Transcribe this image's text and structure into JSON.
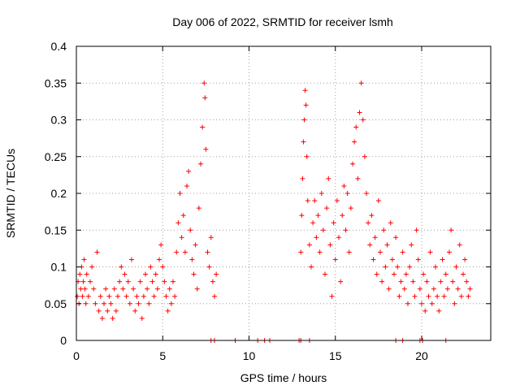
{
  "chart_data": {
    "type": "scatter",
    "title": "Day 006 of 2022, SRMTID for receiver lsmh",
    "xlabel": "GPS time / hours",
    "ylabel": "SRMTID / TECUs",
    "xlim": [
      0,
      24
    ],
    "ylim": [
      0,
      0.4
    ],
    "grid": true,
    "marker": "+",
    "color": "#ff0000",
    "x_ticks": [
      0,
      5,
      10,
      15,
      20
    ],
    "x_tick_labels": [
      "0",
      "5",
      "10",
      "15",
      "20"
    ],
    "y_ticks": [
      0,
      0.05,
      0.1,
      0.15,
      0.2,
      0.25,
      0.3,
      0.35,
      0.4
    ],
    "y_tick_labels": [
      "0",
      "0.05",
      "0.1",
      "0.15",
      "0.2",
      "0.25",
      "0.3",
      "0.35",
      "0.4"
    ],
    "series": [
      {
        "name": "SRMTID",
        "points": [
          [
            0.05,
            0.06
          ],
          [
            0.1,
            0.08
          ],
          [
            0.15,
            0.05
          ],
          [
            0.2,
            0.09
          ],
          [
            0.25,
            0.07
          ],
          [
            0.3,
            0.1
          ],
          [
            0.35,
            0.06
          ],
          [
            0.4,
            0.08
          ],
          [
            0.45,
            0.11
          ],
          [
            0.5,
            0.07
          ],
          [
            0.55,
            0.05
          ],
          [
            0.6,
            0.09
          ],
          [
            0.7,
            0.06
          ],
          [
            0.8,
            0.08
          ],
          [
            0.9,
            0.1
          ],
          [
            1.0,
            0.07
          ],
          [
            1.1,
            0.05
          ],
          [
            1.2,
            0.12
          ],
          [
            1.3,
            0.04
          ],
          [
            1.4,
            0.06
          ],
          [
            1.5,
            0.03
          ],
          [
            1.6,
            0.05
          ],
          [
            1.7,
            0.07
          ],
          [
            1.8,
            0.04
          ],
          [
            1.9,
            0.06
          ],
          [
            2.0,
            0.05
          ],
          [
            2.1,
            0.03
          ],
          [
            2.2,
            0.07
          ],
          [
            2.3,
            0.04
          ],
          [
            2.4,
            0.06
          ],
          [
            2.5,
            0.08
          ],
          [
            2.6,
            0.1
          ],
          [
            2.7,
            0.07
          ],
          [
            2.8,
            0.09
          ],
          [
            2.9,
            0.06
          ],
          [
            3.0,
            0.08
          ],
          [
            3.1,
            0.05
          ],
          [
            3.2,
            0.11
          ],
          [
            3.3,
            0.07
          ],
          [
            3.4,
            0.04
          ],
          [
            3.5,
            0.06
          ],
          [
            3.6,
            0.05
          ],
          [
            3.7,
            0.08
          ],
          [
            3.8,
            0.03
          ],
          [
            3.9,
            0.06
          ],
          [
            4.0,
            0.09
          ],
          [
            4.1,
            0.07
          ],
          [
            4.2,
            0.05
          ],
          [
            4.3,
            0.1
          ],
          [
            4.4,
            0.08
          ],
          [
            4.5,
            0.06
          ],
          [
            4.6,
            0.09
          ],
          [
            4.7,
            0.07
          ],
          [
            4.8,
            0.11
          ],
          [
            4.9,
            0.13
          ],
          [
            5.0,
            0.1
          ],
          [
            5.1,
            0.08
          ],
          [
            5.2,
            0.06
          ],
          [
            5.3,
            0.04
          ],
          [
            5.4,
            0.07
          ],
          [
            5.5,
            0.05
          ],
          [
            5.6,
            0.08
          ],
          [
            5.7,
            0.06
          ],
          [
            5.8,
            0.12
          ],
          [
            5.9,
            0.16
          ],
          [
            6.0,
            0.2
          ],
          [
            6.1,
            0.14
          ],
          [
            6.2,
            0.17
          ],
          [
            6.3,
            0.12
          ],
          [
            6.4,
            0.21
          ],
          [
            6.5,
            0.23
          ],
          [
            6.6,
            0.15
          ],
          [
            6.7,
            0.11
          ],
          [
            6.8,
            0.09
          ],
          [
            6.9,
            0.13
          ],
          [
            7.0,
            0.07
          ],
          [
            7.1,
            0.18
          ],
          [
            7.2,
            0.24
          ],
          [
            7.3,
            0.29
          ],
          [
            7.4,
            0.35
          ],
          [
            7.45,
            0.33
          ],
          [
            7.5,
            0.26
          ],
          [
            7.6,
            0.12
          ],
          [
            7.7,
            0.1
          ],
          [
            7.8,
            0.14
          ],
          [
            7.9,
            0.08
          ],
          [
            8.0,
            0.06
          ],
          [
            8.1,
            0.09
          ],
          [
            7.8,
            0.0
          ],
          [
            8.0,
            0.0
          ],
          [
            9.2,
            0.0
          ],
          [
            10.5,
            0.0
          ],
          [
            10.9,
            0.0
          ],
          [
            11.2,
            0.0
          ],
          [
            12.9,
            0.0
          ],
          [
            13.0,
            0.0
          ],
          [
            13.5,
            0.0
          ],
          [
            13.0,
            0.12
          ],
          [
            13.05,
            0.17
          ],
          [
            13.1,
            0.22
          ],
          [
            13.15,
            0.27
          ],
          [
            13.2,
            0.3
          ],
          [
            13.25,
            0.34
          ],
          [
            13.3,
            0.32
          ],
          [
            13.35,
            0.25
          ],
          [
            13.4,
            0.19
          ],
          [
            13.5,
            0.13
          ],
          [
            13.6,
            0.1
          ],
          [
            13.7,
            0.16
          ],
          [
            13.8,
            0.19
          ],
          [
            13.9,
            0.14
          ],
          [
            14.0,
            0.17
          ],
          [
            14.1,
            0.12
          ],
          [
            14.2,
            0.2
          ],
          [
            14.3,
            0.15
          ],
          [
            14.4,
            0.09
          ],
          [
            14.5,
            0.18
          ],
          [
            14.6,
            0.22
          ],
          [
            14.7,
            0.13
          ],
          [
            14.8,
            0.06
          ],
          [
            14.9,
            0.16
          ],
          [
            15.0,
            0.11
          ],
          [
            15.1,
            0.19
          ],
          [
            15.2,
            0.14
          ],
          [
            15.3,
            0.08
          ],
          [
            15.4,
            0.17
          ],
          [
            15.5,
            0.21
          ],
          [
            15.6,
            0.15
          ],
          [
            15.7,
            0.2
          ],
          [
            15.8,
            0.12
          ],
          [
            15.9,
            0.18
          ],
          [
            16.0,
            0.24
          ],
          [
            16.1,
            0.27
          ],
          [
            16.2,
            0.29
          ],
          [
            16.3,
            0.22
          ],
          [
            16.4,
            0.31
          ],
          [
            16.5,
            0.35
          ],
          [
            16.6,
            0.3
          ],
          [
            16.7,
            0.25
          ],
          [
            16.8,
            0.2
          ],
          [
            16.9,
            0.16
          ],
          [
            17.0,
            0.13
          ],
          [
            17.1,
            0.17
          ],
          [
            17.2,
            0.11
          ],
          [
            17.3,
            0.14
          ],
          [
            17.4,
            0.09
          ],
          [
            17.5,
            0.19
          ],
          [
            17.6,
            0.12
          ],
          [
            17.7,
            0.08
          ],
          [
            17.8,
            0.15
          ],
          [
            17.9,
            0.1
          ],
          [
            18.0,
            0.13
          ],
          [
            18.1,
            0.07
          ],
          [
            18.2,
            0.16
          ],
          [
            18.3,
            0.11
          ],
          [
            18.4,
            0.09
          ],
          [
            18.5,
            0.14
          ],
          [
            18.6,
            0.1
          ],
          [
            18.7,
            0.06
          ],
          [
            18.8,
            0.08
          ],
          [
            18.9,
            0.12
          ],
          [
            19.0,
            0.07
          ],
          [
            19.1,
            0.09
          ],
          [
            19.2,
            0.05
          ],
          [
            19.3,
            0.1
          ],
          [
            19.4,
            0.13
          ],
          [
            19.5,
            0.08
          ],
          [
            19.6,
            0.06
          ],
          [
            19.7,
            0.15
          ],
          [
            19.8,
            0.11
          ],
          [
            19.9,
            0.07
          ],
          [
            20.0,
            0.05
          ],
          [
            20.1,
            0.09
          ],
          [
            20.2,
            0.04
          ],
          [
            20.3,
            0.08
          ],
          [
            20.4,
            0.06
          ],
          [
            20.5,
            0.12
          ],
          [
            20.6,
            0.05
          ],
          [
            20.7,
            0.07
          ],
          [
            20.8,
            0.1
          ],
          [
            20.9,
            0.06
          ],
          [
            21.0,
            0.04
          ],
          [
            21.1,
            0.08
          ],
          [
            21.2,
            0.11
          ],
          [
            21.3,
            0.06
          ],
          [
            21.4,
            0.09
          ],
          [
            21.5,
            0.07
          ],
          [
            21.6,
            0.12
          ],
          [
            21.7,
            0.15
          ],
          [
            21.8,
            0.08
          ],
          [
            21.9,
            0.05
          ],
          [
            22.0,
            0.1
          ],
          [
            22.1,
            0.07
          ],
          [
            22.2,
            0.13
          ],
          [
            22.3,
            0.06
          ],
          [
            22.4,
            0.09
          ],
          [
            22.5,
            0.11
          ],
          [
            22.6,
            0.08
          ],
          [
            22.7,
            0.06
          ],
          [
            22.8,
            0.07
          ],
          [
            18.5,
            0.0
          ],
          [
            18.9,
            0.0
          ],
          [
            19.9,
            0.0
          ],
          [
            20.05,
            0.0
          ],
          [
            21.4,
            0.0
          ]
        ]
      }
    ]
  }
}
